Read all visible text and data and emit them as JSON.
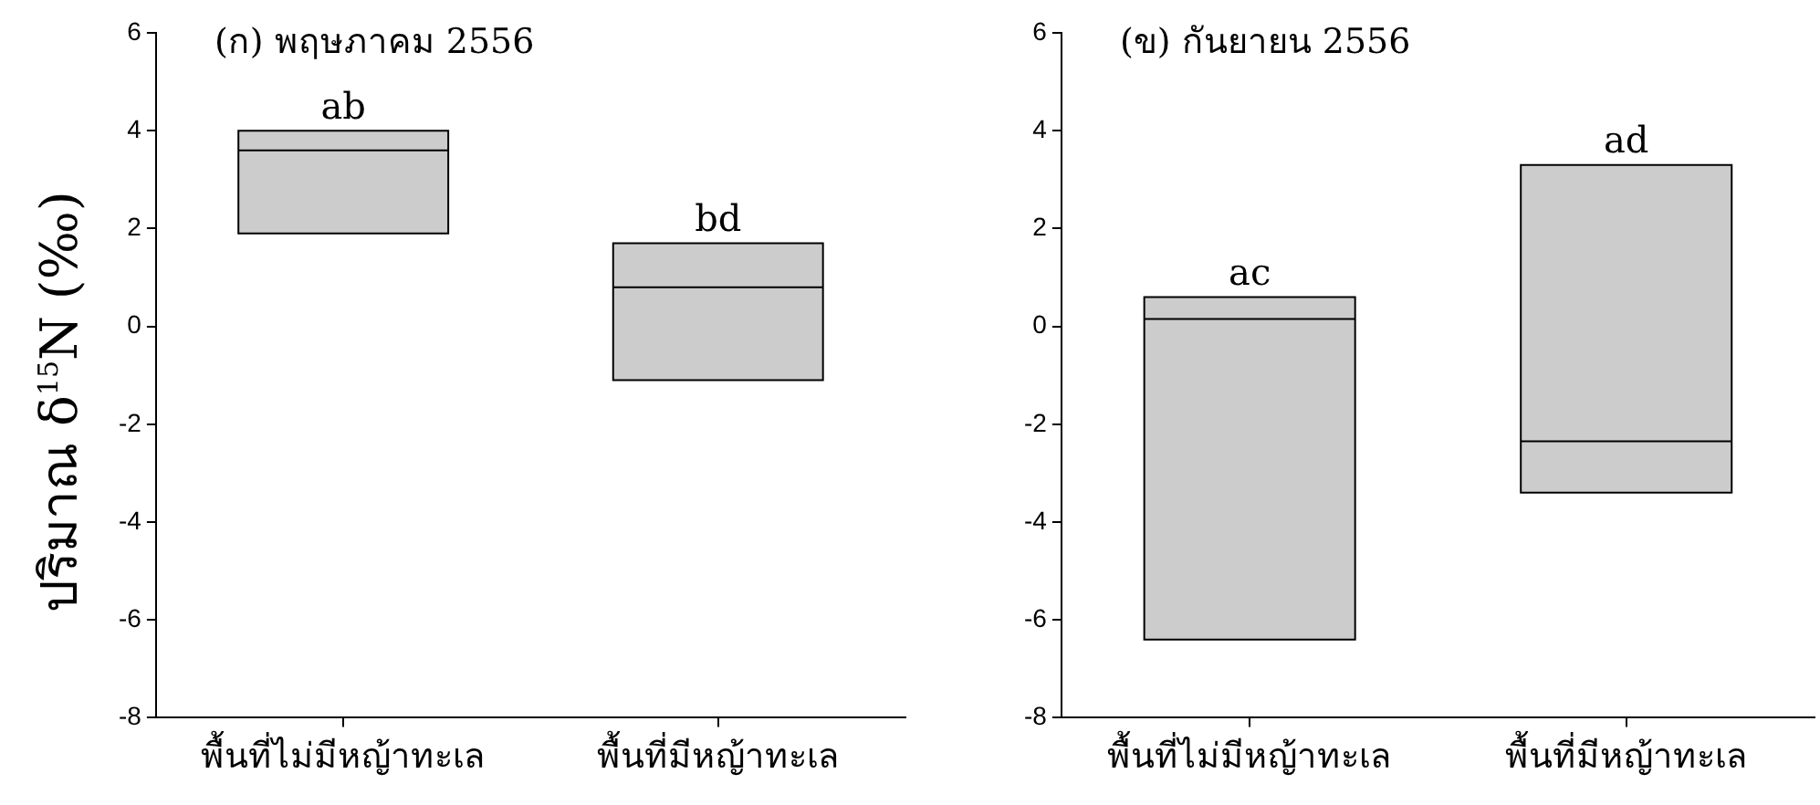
{
  "chart_data": [
    {
      "type": "box",
      "title": "(ก) พฤษภาคม 2556",
      "ylabel": "ปริมาณ δ$^{15}$N (‰)",
      "categories": [
        "พื้นที่ไม่มีหญ้าทะเล",
        "พื้นที่มีหญ้าทะเล"
      ],
      "boxes": [
        {
          "low": 1.9,
          "q1": 1.9,
          "median": 3.6,
          "q3": 4.0,
          "high": 4.0
        },
        {
          "low": -1.1,
          "q1": -1.1,
          "median": 0.8,
          "q3": 1.7,
          "high": 1.7
        }
      ],
      "color": "#cccccc",
      "ylim": [
        -8,
        6
      ],
      "yticks": [
        -8,
        -6,
        -4,
        -2,
        0,
        2,
        4,
        6
      ],
      "grid": false,
      "annotations": [
        {
          "text": "ab",
          "x": "พื้นที่ไม่มีหญ้าทะเล",
          "y": 4.0
        },
        {
          "text": "bd",
          "x": "พื้นที่มีหญ้าทะเล",
          "y": 1.7
        }
      ]
    },
    {
      "type": "box",
      "title": "(ข) กันยายน 2556",
      "categories": [
        "พื้นที่ไม่มีหญ้าทะเล",
        "พื้นที่มีหญ้าทะเล"
      ],
      "boxes": [
        {
          "low": -6.4,
          "q1": -6.4,
          "median": 0.15,
          "q3": 0.6,
          "high": 0.6
        },
        {
          "low": -3.4,
          "q1": -3.4,
          "median": -2.35,
          "q3": 3.3,
          "high": 3.3
        }
      ],
      "color": "#cccccc",
      "ylim": [
        -8,
        6
      ],
      "yticks": [
        -8,
        -6,
        -4,
        -2,
        0,
        2,
        4,
        6
      ],
      "grid": false,
      "annotations": [
        {
          "text": "ac",
          "x": "พื้นที่ไม่มีหญ้าทะเล",
          "y": 0.6
        },
        {
          "text": "ad",
          "x": "พื้นที่มีหญ้าทะเล",
          "y": 3.3
        }
      ]
    }
  ]
}
